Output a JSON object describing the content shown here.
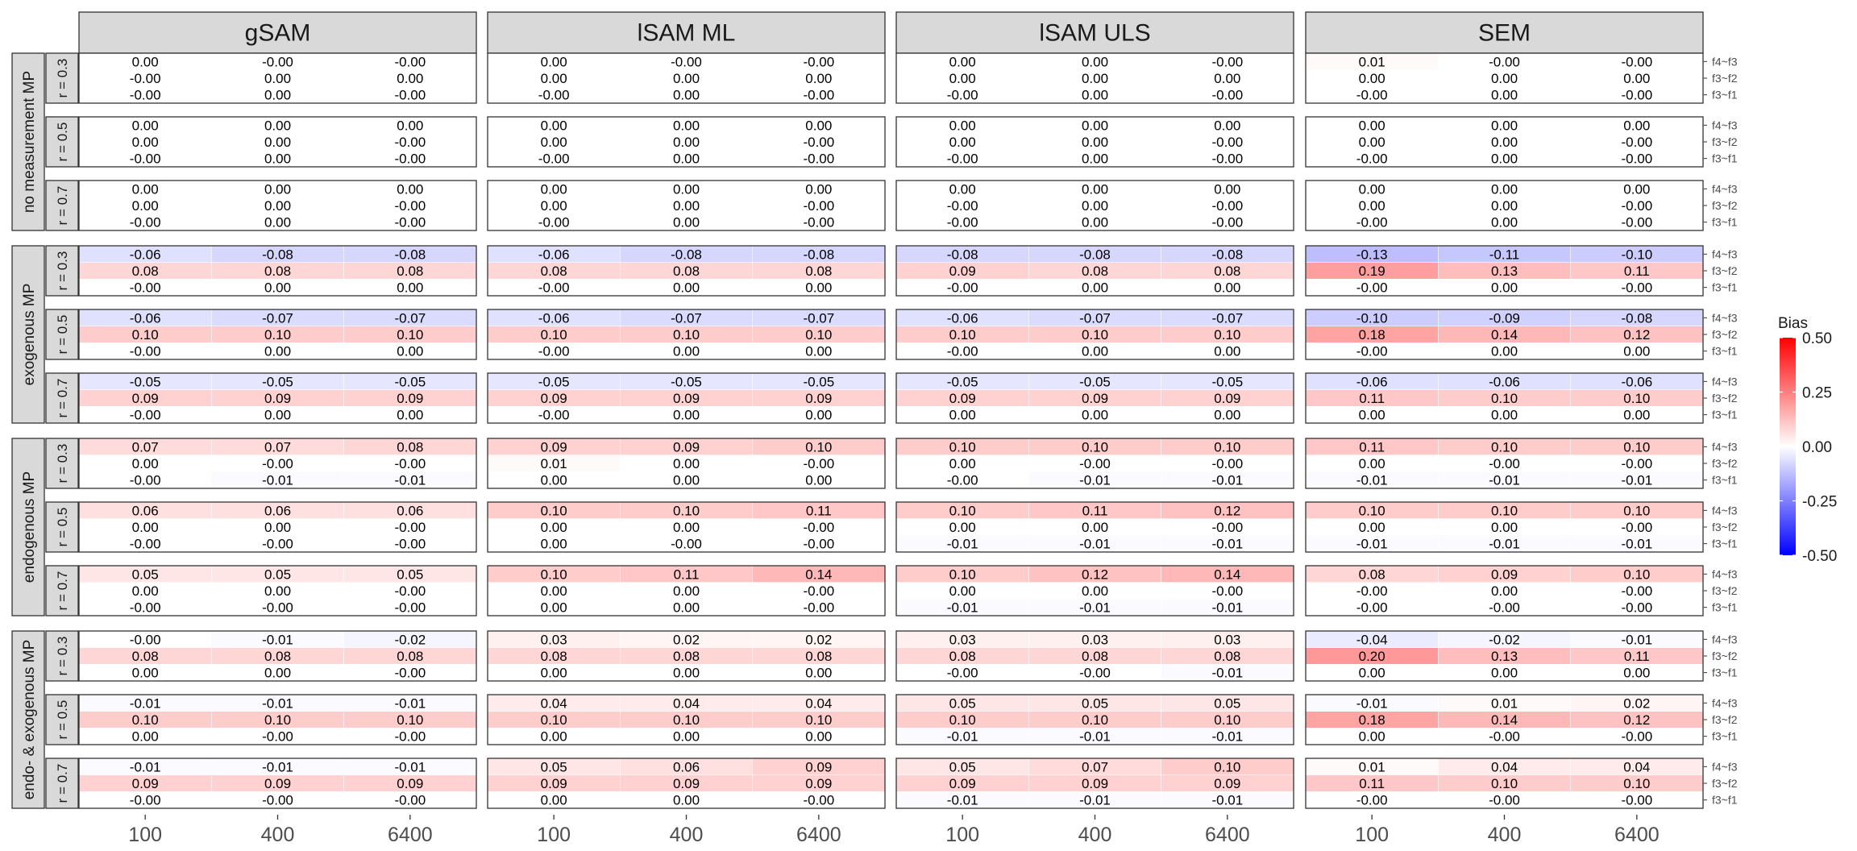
{
  "chart_data": {
    "type": "heatmap",
    "title": "",
    "xlabel": "",
    "ylabel": "",
    "x": [
      "100",
      "400",
      "6400"
    ],
    "y": [
      "f4~f3",
      "f3~f2",
      "f3~f1"
    ],
    "col_facets": [
      "gSAM",
      "lSAM ML",
      "lSAM ULS",
      "SEM"
    ],
    "row_groups": [
      "no measurement MP",
      "exogenous MP",
      "endogenous MP",
      "endo- & exogenous MP"
    ],
    "sub_rows": [
      "r = 0.3",
      "r = 0.5",
      "r = 0.7"
    ],
    "legend": {
      "title": "Bias",
      "ticks": [
        "0.50",
        "0.25",
        "0.00",
        "-0.25",
        "-0.50"
      ],
      "range": [
        -0.5,
        0.5
      ],
      "colors": {
        "low": "#0000ff",
        "mid": "#ffffff",
        "high": "#ff0000"
      },
      "placement": "right"
    },
    "values": [
      [
        [
          [
            [
              "0.00",
              "-0.00",
              "-0.00"
            ],
            [
              "-0.00",
              "0.00",
              "0.00"
            ],
            [
              "-0.00",
              "0.00",
              "-0.00"
            ]
          ],
          [
            [
              "0.00",
              "0.00",
              "0.00"
            ],
            [
              "0.00",
              "0.00",
              "-0.00"
            ],
            [
              "-0.00",
              "0.00",
              "-0.00"
            ]
          ],
          [
            [
              "0.00",
              "0.00",
              "0.00"
            ],
            [
              "0.00",
              "0.00",
              "-0.00"
            ],
            [
              "-0.00",
              "0.00",
              "-0.00"
            ]
          ]
        ],
        [
          [
            [
              "-0.06",
              "-0.08",
              "-0.08"
            ],
            [
              "0.08",
              "0.08",
              "0.08"
            ],
            [
              "-0.00",
              "0.00",
              "0.00"
            ]
          ],
          [
            [
              "-0.06",
              "-0.07",
              "-0.07"
            ],
            [
              "0.10",
              "0.10",
              "0.10"
            ],
            [
              "-0.00",
              "0.00",
              "0.00"
            ]
          ],
          [
            [
              "-0.05",
              "-0.05",
              "-0.05"
            ],
            [
              "0.09",
              "0.09",
              "0.09"
            ],
            [
              "-0.00",
              "0.00",
              "0.00"
            ]
          ]
        ],
        [
          [
            [
              "0.07",
              "0.07",
              "0.08"
            ],
            [
              "0.00",
              "-0.00",
              "-0.00"
            ],
            [
              "-0.00",
              "-0.01",
              "-0.01"
            ]
          ],
          [
            [
              "0.06",
              "0.06",
              "0.06"
            ],
            [
              "0.00",
              "0.00",
              "-0.00"
            ],
            [
              "-0.00",
              "-0.00",
              "-0.00"
            ]
          ],
          [
            [
              "0.05",
              "0.05",
              "0.05"
            ],
            [
              "0.00",
              "0.00",
              "-0.00"
            ],
            [
              "-0.00",
              "-0.00",
              "-0.00"
            ]
          ]
        ],
        [
          [
            [
              "-0.00",
              "-0.01",
              "-0.02"
            ],
            [
              "0.08",
              "0.08",
              "0.08"
            ],
            [
              "0.00",
              "0.00",
              "-0.00"
            ]
          ],
          [
            [
              "-0.01",
              "-0.01",
              "-0.01"
            ],
            [
              "0.10",
              "0.10",
              "0.10"
            ],
            [
              "0.00",
              "-0.00",
              "-0.00"
            ]
          ],
          [
            [
              "-0.01",
              "-0.01",
              "-0.01"
            ],
            [
              "0.09",
              "0.09",
              "0.09"
            ],
            [
              "-0.00",
              "-0.00",
              "-0.00"
            ]
          ]
        ]
      ],
      [
        [
          [
            [
              "0.00",
              "-0.00",
              "-0.00"
            ],
            [
              "0.00",
              "0.00",
              "0.00"
            ],
            [
              "-0.00",
              "0.00",
              "-0.00"
            ]
          ],
          [
            [
              "0.00",
              "0.00",
              "0.00"
            ],
            [
              "0.00",
              "0.00",
              "-0.00"
            ],
            [
              "-0.00",
              "0.00",
              "-0.00"
            ]
          ],
          [
            [
              "0.00",
              "0.00",
              "0.00"
            ],
            [
              "0.00",
              "0.00",
              "-0.00"
            ],
            [
              "-0.00",
              "0.00",
              "-0.00"
            ]
          ]
        ],
        [
          [
            [
              "-0.06",
              "-0.08",
              "-0.08"
            ],
            [
              "0.08",
              "0.08",
              "0.08"
            ],
            [
              "-0.00",
              "0.00",
              "0.00"
            ]
          ],
          [
            [
              "-0.06",
              "-0.07",
              "-0.07"
            ],
            [
              "0.10",
              "0.10",
              "0.10"
            ],
            [
              "-0.00",
              "0.00",
              "0.00"
            ]
          ],
          [
            [
              "-0.05",
              "-0.05",
              "-0.05"
            ],
            [
              "0.09",
              "0.09",
              "0.09"
            ],
            [
              "-0.00",
              "0.00",
              "0.00"
            ]
          ]
        ],
        [
          [
            [
              "0.09",
              "0.09",
              "0.10"
            ],
            [
              "0.01",
              "0.00",
              "-0.00"
            ],
            [
              "0.00",
              "0.00",
              "0.00"
            ]
          ],
          [
            [
              "0.10",
              "0.10",
              "0.11"
            ],
            [
              "0.00",
              "0.00",
              "-0.00"
            ],
            [
              "0.00",
              "-0.00",
              "-0.00"
            ]
          ],
          [
            [
              "0.10",
              "0.11",
              "0.14"
            ],
            [
              "0.00",
              "0.00",
              "-0.00"
            ],
            [
              "0.00",
              "0.00",
              "-0.00"
            ]
          ]
        ],
        [
          [
            [
              "0.03",
              "0.02",
              "0.02"
            ],
            [
              "0.08",
              "0.08",
              "0.08"
            ],
            [
              "0.00",
              "0.00",
              "0.00"
            ]
          ],
          [
            [
              "0.04",
              "0.04",
              "0.04"
            ],
            [
              "0.10",
              "0.10",
              "0.10"
            ],
            [
              "0.00",
              "0.00",
              "0.00"
            ]
          ],
          [
            [
              "0.05",
              "0.06",
              "0.09"
            ],
            [
              "0.09",
              "0.09",
              "0.09"
            ],
            [
              "0.00",
              "0.00",
              "-0.00"
            ]
          ]
        ]
      ],
      [
        [
          [
            [
              "0.00",
              "0.00",
              "-0.00"
            ],
            [
              "0.00",
              "0.00",
              "0.00"
            ],
            [
              "-0.00",
              "0.00",
              "-0.00"
            ]
          ],
          [
            [
              "0.00",
              "0.00",
              "0.00"
            ],
            [
              "0.00",
              "0.00",
              "-0.00"
            ],
            [
              "-0.00",
              "0.00",
              "-0.00"
            ]
          ],
          [
            [
              "0.00",
              "0.00",
              "0.00"
            ],
            [
              "-0.00",
              "0.00",
              "-0.00"
            ],
            [
              "-0.00",
              "0.00",
              "-0.00"
            ]
          ]
        ],
        [
          [
            [
              "-0.08",
              "-0.08",
              "-0.08"
            ],
            [
              "0.09",
              "0.08",
              "0.08"
            ],
            [
              "-0.00",
              "0.00",
              "0.00"
            ]
          ],
          [
            [
              "-0.06",
              "-0.07",
              "-0.07"
            ],
            [
              "0.10",
              "0.10",
              "0.10"
            ],
            [
              "-0.00",
              "0.00",
              "0.00"
            ]
          ],
          [
            [
              "-0.05",
              "-0.05",
              "-0.05"
            ],
            [
              "0.09",
              "0.09",
              "0.09"
            ],
            [
              "0.00",
              "0.00",
              "0.00"
            ]
          ]
        ],
        [
          [
            [
              "0.10",
              "0.10",
              "0.10"
            ],
            [
              "0.00",
              "-0.00",
              "-0.00"
            ],
            [
              "-0.00",
              "-0.01",
              "-0.01"
            ]
          ],
          [
            [
              "0.10",
              "0.11",
              "0.12"
            ],
            [
              "0.00",
              "0.00",
              "-0.00"
            ],
            [
              "-0.01",
              "-0.01",
              "-0.01"
            ]
          ],
          [
            [
              "0.10",
              "0.12",
              "0.14"
            ],
            [
              "0.00",
              "0.00",
              "-0.00"
            ],
            [
              "-0.01",
              "-0.01",
              "-0.01"
            ]
          ]
        ],
        [
          [
            [
              "0.03",
              "0.03",
              "0.03"
            ],
            [
              "0.08",
              "0.08",
              "0.08"
            ],
            [
              "-0.00",
              "-0.00",
              "-0.01"
            ]
          ],
          [
            [
              "0.05",
              "0.05",
              "0.05"
            ],
            [
              "0.10",
              "0.10",
              "0.10"
            ],
            [
              "-0.01",
              "-0.01",
              "-0.01"
            ]
          ],
          [
            [
              "0.05",
              "0.07",
              "0.10"
            ],
            [
              "0.09",
              "0.09",
              "0.09"
            ],
            [
              "-0.01",
              "-0.01",
              "-0.01"
            ]
          ]
        ]
      ],
      [
        [
          [
            [
              "0.01",
              "-0.00",
              "-0.00"
            ],
            [
              "0.00",
              "0.00",
              "0.00"
            ],
            [
              "-0.00",
              "0.00",
              "-0.00"
            ]
          ],
          [
            [
              "0.00",
              "0.00",
              "0.00"
            ],
            [
              "0.00",
              "0.00",
              "-0.00"
            ],
            [
              "-0.00",
              "0.00",
              "-0.00"
            ]
          ],
          [
            [
              "0.00",
              "0.00",
              "0.00"
            ],
            [
              "0.00",
              "0.00",
              "-0.00"
            ],
            [
              "-0.00",
              "0.00",
              "-0.00"
            ]
          ]
        ],
        [
          [
            [
              "-0.13",
              "-0.11",
              "-0.10"
            ],
            [
              "0.19",
              "0.13",
              "0.11"
            ],
            [
              "-0.00",
              "0.00",
              "-0.00"
            ]
          ],
          [
            [
              "-0.10",
              "-0.09",
              "-0.08"
            ],
            [
              "0.18",
              "0.14",
              "0.12"
            ],
            [
              "-0.00",
              "0.00",
              "0.00"
            ]
          ],
          [
            [
              "-0.06",
              "-0.06",
              "-0.06"
            ],
            [
              "0.11",
              "0.10",
              "0.10"
            ],
            [
              "0.00",
              "0.00",
              "0.00"
            ]
          ]
        ],
        [
          [
            [
              "0.11",
              "0.10",
              "0.10"
            ],
            [
              "0.00",
              "-0.00",
              "-0.00"
            ],
            [
              "-0.01",
              "-0.01",
              "-0.01"
            ]
          ],
          [
            [
              "0.10",
              "0.10",
              "0.10"
            ],
            [
              "0.00",
              "0.00",
              "-0.00"
            ],
            [
              "-0.01",
              "-0.01",
              "-0.01"
            ]
          ],
          [
            [
              "0.08",
              "0.09",
              "0.10"
            ],
            [
              "-0.00",
              "0.00",
              "-0.00"
            ],
            [
              "-0.00",
              "-0.00",
              "-0.00"
            ]
          ]
        ],
        [
          [
            [
              "-0.04",
              "-0.02",
              "-0.01"
            ],
            [
              "0.20",
              "0.13",
              "0.11"
            ],
            [
              "0.00",
              "0.00",
              "0.00"
            ]
          ],
          [
            [
              "-0.01",
              "0.01",
              "0.02"
            ],
            [
              "0.18",
              "0.14",
              "0.12"
            ],
            [
              "0.00",
              "-0.00",
              "-0.00"
            ]
          ],
          [
            [
              "0.01",
              "0.04",
              "0.04"
            ],
            [
              "0.11",
              "0.10",
              "0.10"
            ],
            [
              "-0.00",
              "-0.00",
              "-0.00"
            ]
          ]
        ]
      ]
    ]
  }
}
